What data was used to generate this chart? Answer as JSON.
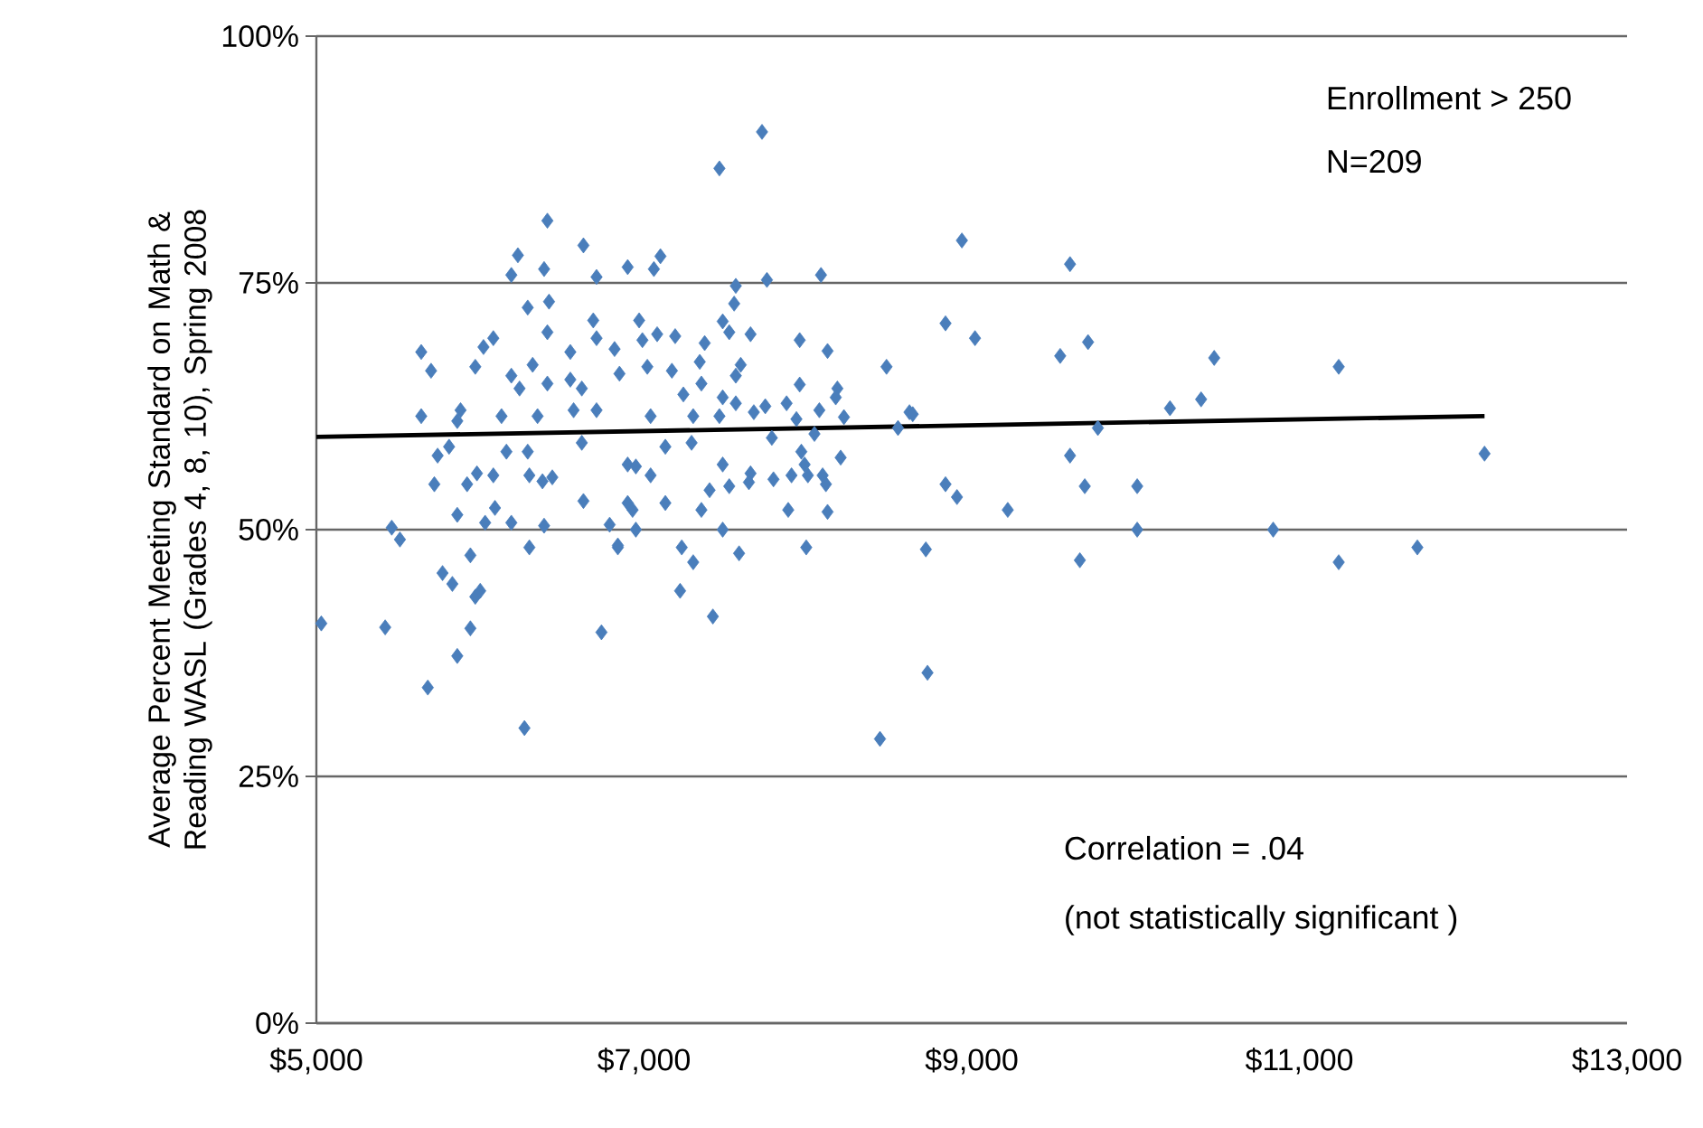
{
  "chart_data": {
    "type": "scatter",
    "ylabel": "Average Percent Meeting Standard on Math & Reading WASL (Grades 4, 8, 10), Spring 2008",
    "annotations": [
      "Enrollment > 250",
      "N=209",
      "Correlation = .04",
      "(not statistically significant )"
    ],
    "xlim": [
      5000,
      13000
    ],
    "ylim": [
      0,
      100
    ],
    "xticks": [
      {
        "value": 5000,
        "label": "$5,000"
      },
      {
        "value": 7000,
        "label": "$7,000"
      },
      {
        "value": 9000,
        "label": "$9,000"
      },
      {
        "value": 11000,
        "label": "$11,000"
      },
      {
        "value": 13000,
        "label": "$13,000"
      }
    ],
    "yticks": [
      {
        "value": 0,
        "label": "0%"
      },
      {
        "value": 25,
        "label": "25%"
      },
      {
        "value": 50,
        "label": "50%"
      },
      {
        "value": 75,
        "label": "75%"
      },
      {
        "value": 100,
        "label": "100%"
      }
    ],
    "grid": "y",
    "marker": "diamond",
    "series": [
      {
        "color": "#4a7ebb",
        "x": [
          5030,
          5420,
          5460,
          5510,
          5680,
          5860,
          6270,
          5940,
          5940,
          5970,
          6000,
          5770,
          5830,
          5720,
          5740,
          5810,
          5640,
          5640,
          5700,
          5860,
          5920,
          5980,
          6080,
          6030,
          6090,
          6190,
          6300,
          6390,
          5880,
          5860,
          5970,
          6020,
          6080,
          6130,
          6160,
          6190,
          6240,
          6290,
          6300,
          6380,
          6440,
          6320,
          6350,
          6410,
          6410,
          6420,
          6290,
          6190,
          6230,
          6390,
          6410,
          6630,
          6710,
          6550,
          6550,
          6620,
          6690,
          6710,
          6570,
          6620,
          6710,
          6630,
          6740,
          6790,
          6840,
          6820,
          6850,
          6900,
          7720,
          7460,
          7060,
          7100,
          7560,
          7550,
          7750,
          8080,
          6970,
          6990,
          7080,
          7190,
          7370,
          7480,
          7520,
          7650,
          7950,
          8120,
          8480,
          7020,
          7170,
          7340,
          7350,
          7590,
          7560,
          7240,
          7480,
          7560,
          7740,
          7870,
          7950,
          8180,
          8170,
          8070,
          8220,
          8620,
          8550,
          7040,
          7300,
          7460,
          7670,
          7130,
          7290,
          7780,
          7930,
          8040,
          7960,
          7980,
          8200,
          6900,
          6950,
          7040,
          7480,
          7650,
          7640,
          7520,
          7400,
          7790,
          7900,
          8000,
          8090,
          8110,
          7130,
          7350,
          7880,
          8120,
          6900,
          6930,
          6950,
          6840,
          7480,
          7230,
          7300,
          7580,
          7990,
          8720,
          7220,
          7420,
          8730,
          8440,
          8940,
          9600,
          8840,
          9020,
          9540,
          9710,
          10480,
          11240,
          8640,
          10210,
          10400,
          9770,
          9600,
          12130,
          8840,
          8910,
          9220,
          9690,
          10010,
          10010,
          10840,
          9660,
          11240,
          11720
        ],
        "values": [
          40.5,
          40.1,
          50.2,
          49.0,
          34.0,
          37.2,
          29.9,
          40.0,
          47.4,
          43.2,
          43.8,
          45.6,
          44.5,
          54.6,
          57.5,
          58.4,
          61.5,
          68.0,
          66.1,
          51.5,
          54.6,
          55.7,
          55.5,
          50.7,
          52.2,
          50.7,
          48.2,
          50.4,
          62.1,
          61.0,
          66.5,
          68.5,
          69.4,
          61.5,
          57.9,
          65.6,
          64.3,
          57.9,
          55.5,
          54.9,
          55.3,
          66.7,
          61.5,
          64.8,
          70.0,
          73.1,
          72.5,
          75.8,
          77.8,
          76.4,
          81.3,
          78.8,
          75.6,
          68.0,
          65.2,
          64.3,
          71.2,
          69.4,
          62.1,
          58.8,
          62.1,
          52.9,
          39.6,
          50.5,
          48.2,
          68.3,
          65.8,
          76.6,
          90.3,
          86.6,
          76.4,
          77.7,
          74.7,
          72.9,
          75.3,
          75.8,
          71.2,
          69.2,
          69.8,
          69.6,
          68.9,
          71.1,
          70.0,
          69.8,
          69.2,
          68.1,
          66.5,
          66.5,
          66.1,
          67.0,
          64.8,
          66.7,
          65.6,
          63.7,
          63.4,
          62.8,
          62.5,
          62.8,
          64.7,
          64.3,
          63.4,
          62.1,
          61.4,
          61.9,
          60.3,
          61.5,
          61.5,
          61.5,
          61.9,
          58.4,
          58.8,
          59.3,
          61.2,
          59.7,
          57.9,
          56.6,
          57.3,
          56.6,
          56.4,
          55.5,
          56.6,
          55.7,
          54.8,
          54.4,
          54.0,
          55.1,
          55.5,
          55.5,
          55.5,
          54.6,
          52.7,
          52.0,
          52.0,
          51.8,
          52.7,
          52.0,
          50.0,
          48.4,
          50.0,
          48.2,
          46.7,
          47.6,
          48.2,
          48.0,
          43.8,
          41.2,
          35.5,
          28.8,
          79.3,
          76.9,
          70.9,
          69.4,
          67.6,
          69.0,
          67.4,
          66.5,
          61.7,
          62.3,
          63.2,
          60.3,
          57.5,
          57.7,
          54.6,
          53.3,
          52.0,
          54.4,
          54.4,
          50.0,
          50.0,
          46.9,
          46.7,
          48.2
        ]
      },
      {
        "type": "line",
        "color": "#000000",
        "marker": "none",
        "x": [
          5000,
          12130
        ],
        "values": [
          59.4,
          61.5
        ]
      }
    ]
  }
}
